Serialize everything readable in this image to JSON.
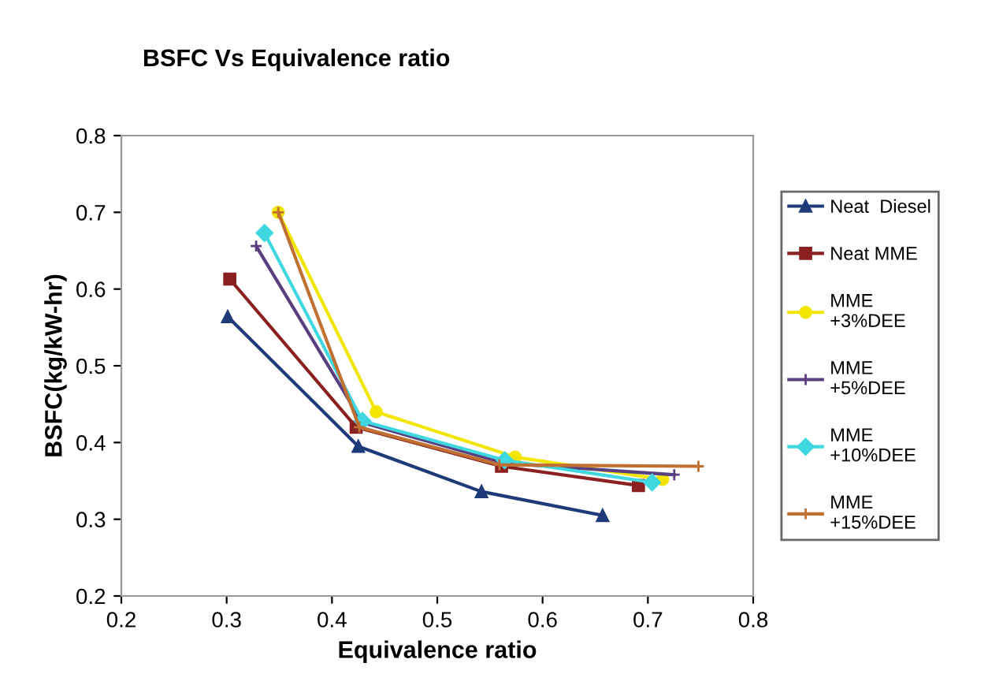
{
  "chart_data": {
    "type": "line",
    "title": "BSFC Vs Equivalence ratio",
    "xlabel": "Equivalence ratio",
    "ylabel": "BSFC(kg/kW-hr)",
    "xlim": [
      0.2,
      0.8
    ],
    "xticks": [
      0.2,
      0.3,
      0.4,
      0.5,
      0.6,
      0.7,
      0.8
    ],
    "ylim": [
      0.2,
      0.8
    ],
    "yticks": [
      0.2,
      0.3,
      0.4,
      0.5,
      0.6,
      0.7,
      0.8
    ],
    "grid": false,
    "legend": "right",
    "series": [
      {
        "name": "Neat  Diesel",
        "color": "#1f3a78",
        "marker": "triangle",
        "x": [
          0.301,
          0.425,
          0.542,
          0.657
        ],
        "values": [
          0.564,
          0.395,
          0.336,
          0.305
        ]
      },
      {
        "name": "Neat MME",
        "color": "#8b2020",
        "marker": "square",
        "x": [
          0.303,
          0.423,
          0.561,
          0.691
        ],
        "values": [
          0.613,
          0.42,
          0.369,
          0.344
        ]
      },
      {
        "name": "MME\n+3%DEE",
        "color": "#f2e600",
        "marker": "circle",
        "x": [
          0.349,
          0.442,
          0.574,
          0.714
        ],
        "values": [
          0.7,
          0.44,
          0.381,
          0.352
        ]
      },
      {
        "name": "MME\n+5%DEE",
        "color": "#5a3f80",
        "marker": "cross",
        "x": [
          0.328,
          0.429,
          0.564,
          0.725
        ],
        "values": [
          0.656,
          0.426,
          0.373,
          0.358
        ]
      },
      {
        "name": "MME\n+10%DEE",
        "color": "#40d8e0",
        "marker": "diamond",
        "x": [
          0.336,
          0.429,
          0.564,
          0.704
        ],
        "values": [
          0.673,
          0.428,
          0.377,
          0.348
        ]
      },
      {
        "name": "MME\n+15%DEE",
        "color": "#c07030",
        "marker": "cross",
        "x": [
          0.349,
          0.426,
          0.559,
          0.748
        ],
        "values": [
          0.7,
          0.42,
          0.371,
          0.369
        ]
      }
    ]
  }
}
